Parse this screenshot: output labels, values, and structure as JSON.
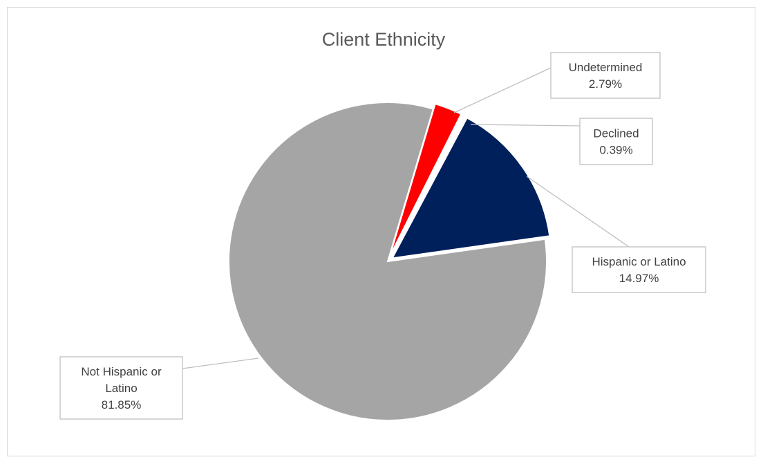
{
  "chart_data": {
    "type": "pie",
    "title": "Client Ethnicity",
    "slices": [
      {
        "name": "Undetermined",
        "value": 2.79,
        "label": "2.79%",
        "color": "#ff0000"
      },
      {
        "name": "Declined",
        "value": 0.39,
        "label": "0.39%",
        "color": "#ffffff"
      },
      {
        "name": "Hispanic or Latino",
        "value": 14.97,
        "label": "14.97%",
        "color": "#00205b"
      },
      {
        "name": "Not Hispanic or Latino",
        "value": 81.85,
        "label": "81.85%",
        "color": "#a5a5a5"
      }
    ],
    "label_style": "callout boxes with leader lines",
    "legend": "none"
  }
}
